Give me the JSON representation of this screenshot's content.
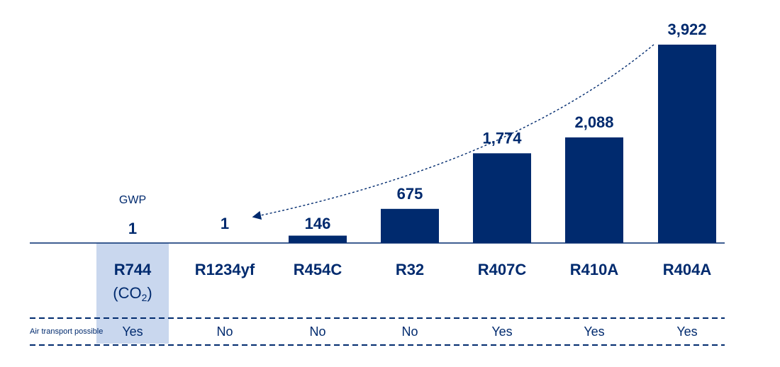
{
  "chart_data": {
    "type": "bar",
    "categories": [
      "R744",
      "R1234yf",
      "R454C",
      "R32",
      "R407C",
      "R410A",
      "R404A"
    ],
    "values": [
      1,
      1,
      146,
      675,
      1774,
      2088,
      3922
    ],
    "value_labels": [
      "1",
      "1",
      "146",
      "675",
      "1,774",
      "2,088",
      "3,922"
    ],
    "highlight_category": "R744",
    "highlight_sublabel": "(CO",
    "highlight_sublabel_subscript": "2",
    "highlight_sublabel_close": ")",
    "value_caption": "GWP",
    "title": "",
    "xlabel": "",
    "ylabel": "",
    "ylim": [
      0,
      3922
    ],
    "grid": false,
    "legend": "none",
    "row_label": "Air transport possible",
    "air_transport": [
      "Yes",
      "No",
      "No",
      "No",
      "Yes",
      "Yes",
      "Yes"
    ],
    "annotation": "dotted curved arrow from R404A bar to R1234yf value"
  },
  "colors": {
    "bar": "#002a6e",
    "highlight_bg": "#c9d7ee",
    "text": "#002a6e"
  }
}
